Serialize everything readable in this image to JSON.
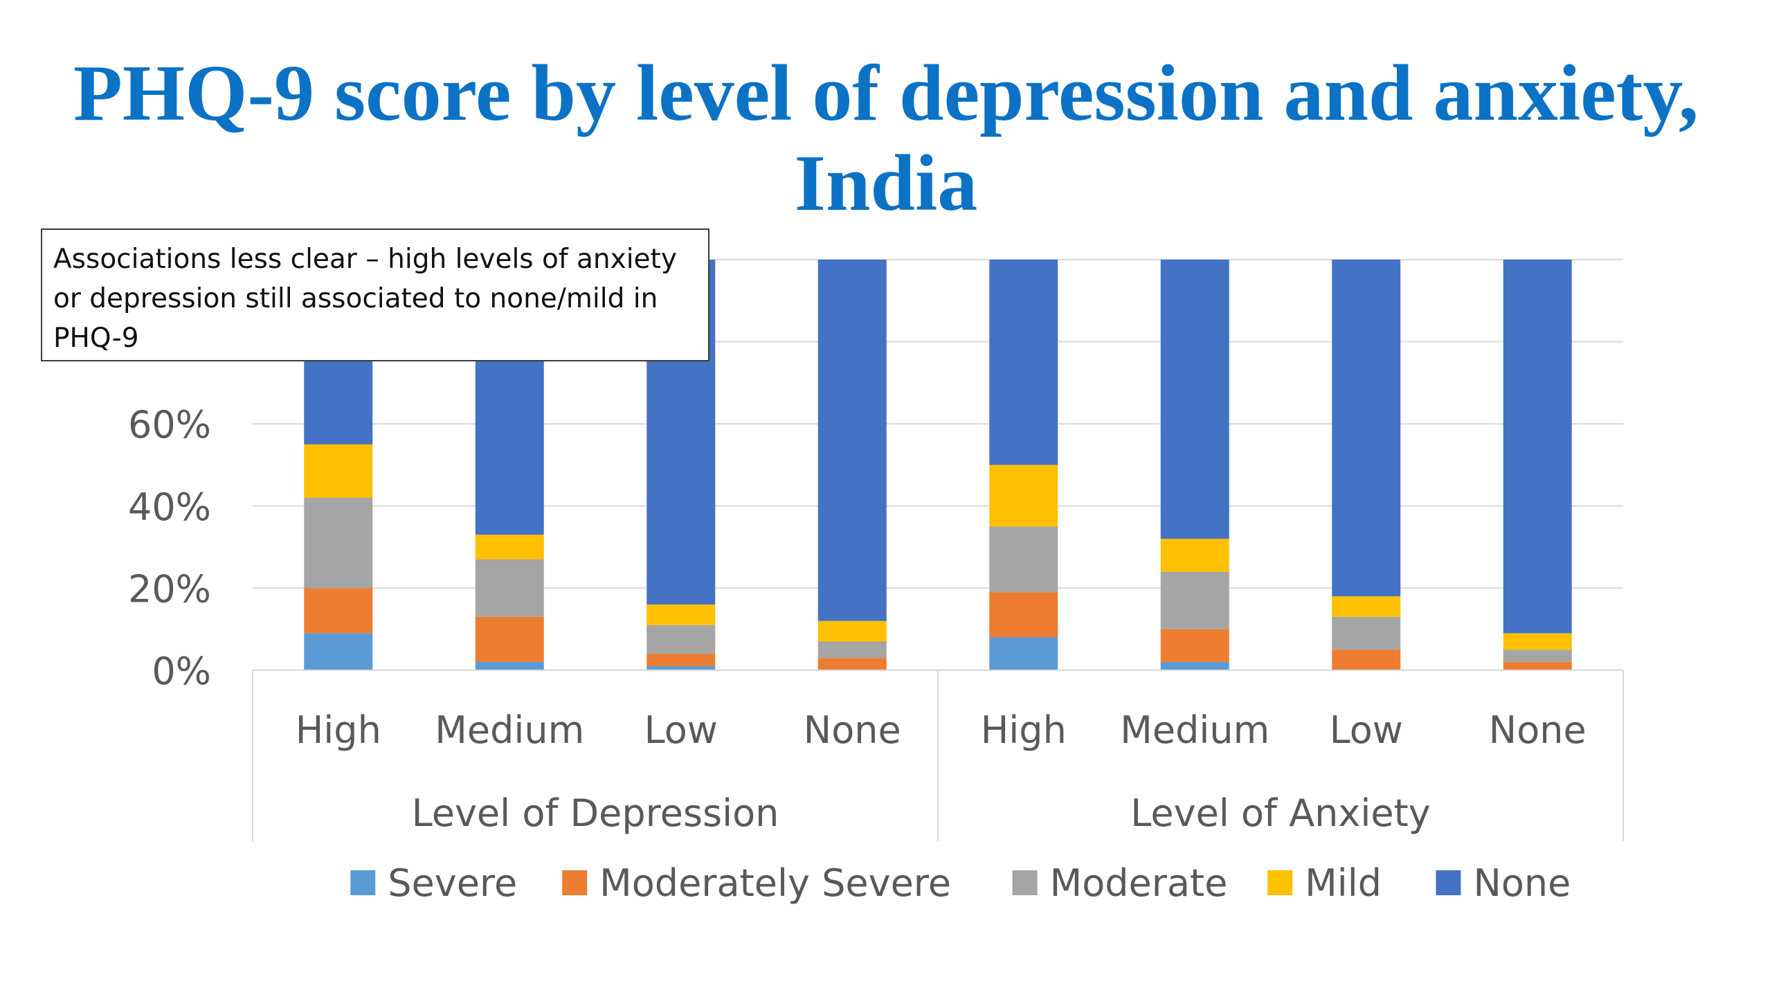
{
  "slide": {
    "title_lines": [
      "PHQ-9 score by level of depression and anxiety,",
      "India"
    ],
    "callout": "Associations less clear – high levels of anxiety or depression still associated to none/mild  in PHQ-9"
  },
  "chart_data": {
    "type": "bar",
    "stacked": true,
    "percent_stacked": true,
    "title": "",
    "xlabel": "",
    "ylabel": "",
    "ylim": [
      0,
      100
    ],
    "y_ticks": [
      "0%",
      "20%",
      "40%",
      "60%"
    ],
    "grid": true,
    "legend_position": "bottom",
    "groups": [
      {
        "label": "Level of Depression",
        "categories": [
          "High",
          "Medium",
          "Low",
          "None"
        ]
      },
      {
        "label": "Level of Anxiety",
        "categories": [
          "High",
          "Medium",
          "Low",
          "None"
        ]
      }
    ],
    "categories": [
      "High",
      "Medium",
      "Low",
      "None",
      "High",
      "Medium",
      "Low",
      "None"
    ],
    "series": [
      {
        "name": "Severe",
        "color": "#5b9bd5",
        "values": [
          9,
          2,
          1,
          0,
          8,
          2,
          0,
          0
        ]
      },
      {
        "name": "Moderately Severe",
        "color": "#ed7d31",
        "values": [
          11,
          11,
          3,
          3,
          11,
          8,
          5,
          2
        ]
      },
      {
        "name": "Moderate",
        "color": "#a5a5a5",
        "values": [
          22,
          14,
          7,
          4,
          16,
          14,
          8,
          3
        ]
      },
      {
        "name": "Mild",
        "color": "#ffc000",
        "values": [
          13,
          6,
          5,
          5,
          15,
          8,
          5,
          4
        ]
      },
      {
        "name": "None",
        "color": "#4472c4",
        "values": [
          45,
          67,
          84,
          88,
          50,
          68,
          82,
          91
        ]
      }
    ]
  }
}
